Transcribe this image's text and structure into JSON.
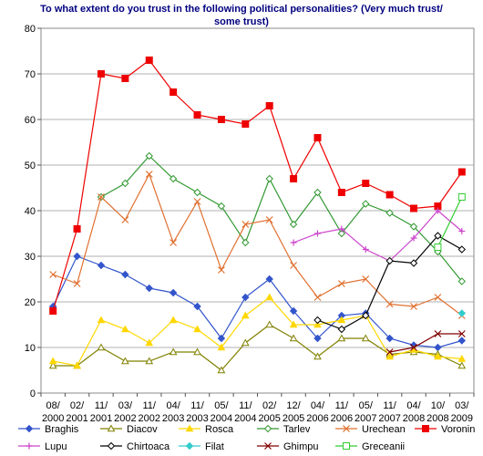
{
  "chart_data": {
    "type": "line",
    "title": "To what extent do you trust in the following political personalities? (Very much trust/ some trust)",
    "xlabel": "",
    "ylabel": "",
    "ylim": [
      0,
      80
    ],
    "yticks": [
      0,
      10,
      20,
      30,
      40,
      50,
      60,
      70,
      80
    ],
    "grid": "horizontal",
    "legend_position": "bottom",
    "categories": [
      [
        "08/",
        "2000"
      ],
      [
        "02/",
        "2001"
      ],
      [
        "11/",
        "2001"
      ],
      [
        "03/",
        "2002"
      ],
      [
        "11/",
        "2002"
      ],
      [
        "04/",
        "2003"
      ],
      [
        "11/",
        "2003"
      ],
      [
        "05/",
        "2004"
      ],
      [
        "11/",
        "2004"
      ],
      [
        "02/",
        "2005"
      ],
      [
        "12/",
        "2005"
      ],
      [
        "04/",
        "2006"
      ],
      [
        "11/",
        "2006"
      ],
      [
        "05/",
        "2007"
      ],
      [
        "11/",
        "2007"
      ],
      [
        "04/",
        "2008"
      ],
      [
        "10/",
        "2008"
      ],
      [
        "03/",
        "2009"
      ]
    ],
    "series": [
      {
        "name": "Braghis",
        "color": "#3355cc",
        "marker": "diamond",
        "values": [
          19,
          30,
          28,
          26,
          23,
          22,
          19,
          12,
          21,
          25,
          18,
          12,
          17,
          17.5,
          12,
          10.5,
          10,
          11.5
        ]
      },
      {
        "name": "Diacov",
        "color": "#808000",
        "marker": "triangle-open",
        "values": [
          6,
          6,
          10,
          7,
          7,
          9,
          9,
          5,
          11,
          15,
          12,
          8,
          12,
          12,
          8.5,
          9,
          8.5,
          6
        ]
      },
      {
        "name": "Rosca",
        "color": "#ffd700",
        "marker": "triangle",
        "values": [
          7,
          6,
          16,
          14,
          11,
          16,
          14,
          10,
          17,
          21,
          15,
          15,
          16,
          17,
          8,
          9.5,
          8,
          7.5
        ]
      },
      {
        "name": "Tarlev",
        "color": "#339933",
        "marker": "diamond-open",
        "values": [
          null,
          null,
          43,
          46,
          52,
          47,
          44,
          41,
          33,
          47,
          37,
          44,
          35,
          41.5,
          39.5,
          36.5,
          31,
          24.5
        ]
      },
      {
        "name": "Urechean",
        "color": "#e07030",
        "marker": "x",
        "values": [
          26,
          24,
          43,
          38,
          48,
          33,
          42,
          27,
          37,
          38,
          28,
          21,
          24,
          25,
          19.5,
          19,
          21,
          17
        ]
      },
      {
        "name": "Voronin",
        "color": "#ee0000",
        "marker": "square",
        "values": [
          18,
          36,
          70,
          69,
          73,
          66,
          61,
          60,
          59,
          63,
          47,
          56,
          44,
          46,
          43.5,
          40.5,
          41,
          48.5
        ]
      },
      {
        "name": "Lupu",
        "color": "#cc44cc",
        "marker": "plus",
        "values": [
          null,
          null,
          null,
          null,
          null,
          null,
          null,
          null,
          null,
          null,
          33,
          35,
          36,
          31.5,
          29,
          34,
          40,
          35.5
        ]
      },
      {
        "name": "Chirtoaca",
        "color": "#000000",
        "marker": "diamond-open",
        "values": [
          null,
          null,
          null,
          null,
          null,
          null,
          null,
          null,
          null,
          null,
          null,
          16,
          14,
          17,
          29,
          28.5,
          34.5,
          31.5
        ]
      },
      {
        "name": "Filat",
        "color": "#33cccc",
        "marker": "diamond",
        "values": [
          null,
          null,
          null,
          null,
          null,
          null,
          null,
          null,
          null,
          null,
          null,
          null,
          null,
          null,
          null,
          null,
          null,
          17.5
        ]
      },
      {
        "name": "Ghimpu",
        "color": "#800000",
        "marker": "x",
        "values": [
          null,
          null,
          null,
          null,
          null,
          null,
          null,
          null,
          null,
          null,
          null,
          null,
          null,
          null,
          9,
          10,
          13,
          13
        ]
      },
      {
        "name": "Greceanii",
        "color": "#33cc33",
        "marker": "square-open",
        "values": [
          null,
          null,
          null,
          null,
          null,
          null,
          null,
          null,
          null,
          null,
          null,
          null,
          null,
          null,
          null,
          null,
          32,
          43
        ]
      }
    ]
  }
}
